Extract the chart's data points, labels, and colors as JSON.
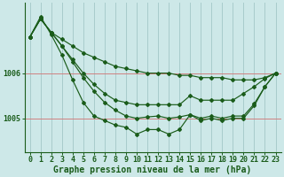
{
  "title": "Graphe pression niveau de la mer (hPa)",
  "background_color": "#cde8e8",
  "plot_bg_color": "#cde8e8",
  "grid_color": "#a8cccc",
  "hgrid_color": "#d08080",
  "line_color": "#1a5c1a",
  "hours": [
    0,
    1,
    2,
    3,
    4,
    5,
    6,
    7,
    8,
    9,
    10,
    11,
    12,
    13,
    14,
    15,
    16,
    17,
    18,
    19,
    20,
    21,
    22,
    23
  ],
  "series": [
    [
      1006.8,
      1007.2,
      1006.9,
      1006.75,
      1006.6,
      1006.45,
      1006.35,
      1006.25,
      1006.15,
      1006.1,
      1006.05,
      1006.0,
      1006.0,
      1006.0,
      1005.95,
      1005.95,
      1005.9,
      1005.9,
      1005.9,
      1005.85,
      1005.85,
      1005.85,
      1005.9,
      1006.0
    ],
    [
      1006.8,
      1007.2,
      1006.9,
      1006.6,
      1006.3,
      1006.0,
      1005.75,
      1005.55,
      1005.4,
      1005.35,
      1005.3,
      1005.3,
      1005.3,
      1005.3,
      1005.3,
      1005.5,
      1005.4,
      1005.4,
      1005.4,
      1005.4,
      1005.55,
      1005.7,
      1005.88,
      1006.0
    ],
    [
      1006.8,
      1007.2,
      1006.9,
      1006.6,
      1006.25,
      1005.9,
      1005.6,
      1005.35,
      1005.18,
      1005.05,
      1005.0,
      1005.03,
      1005.05,
      1005.0,
      1005.03,
      1005.08,
      1005.0,
      1005.05,
      1005.0,
      1005.05,
      1005.05,
      1005.32,
      1005.7,
      1006.0
    ],
    [
      1006.8,
      1007.25,
      1006.85,
      1006.4,
      1005.85,
      1005.35,
      1005.05,
      1004.95,
      1004.85,
      1004.8,
      1004.65,
      1004.75,
      1004.75,
      1004.65,
      1004.75,
      1005.08,
      1004.95,
      1005.0,
      1004.95,
      1005.0,
      1005.0,
      1005.28,
      1005.7,
      1006.0
    ]
  ],
  "ytick_labels": [
    "1005",
    "1006"
  ],
  "ytick_values": [
    1005.0,
    1006.0
  ],
  "ylim": [
    1004.25,
    1007.55
  ],
  "xlim": [
    -0.5,
    23.5
  ],
  "title_fontsize": 7,
  "tick_fontsize": 6
}
